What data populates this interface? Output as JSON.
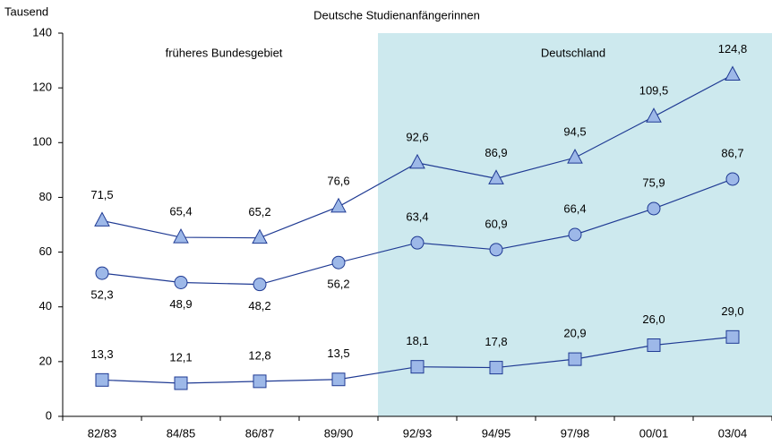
{
  "chart_data": {
    "type": "line",
    "title": "Deutsche Studienanfängerinnen",
    "y_label": "Tausend",
    "annotations": [
      "früheres Bundesgebiet",
      "Deutschland"
    ],
    "categories": [
      "82/83",
      "84/85",
      "86/87",
      "89/90",
      "92/93",
      "94/95",
      "97/98",
      "00/01",
      "03/04"
    ],
    "ylim": [
      0,
      140
    ],
    "yticks": [
      0,
      20,
      40,
      60,
      80,
      100,
      120,
      140
    ],
    "grid": false,
    "series": [
      {
        "marker": "triangle",
        "color": "#1f3a93",
        "marker_color": "#9db8e8",
        "values": [
          71.5,
          65.4,
          65.2,
          76.6,
          92.6,
          86.9,
          94.5,
          109.5,
          124.8
        ],
        "value_labels": [
          "71,5",
          "65,4",
          "65,2",
          "76,6",
          "92,6",
          "86,9",
          "94,5",
          "109,5",
          "124,8"
        ]
      },
      {
        "marker": "circle",
        "color": "#1f3a93",
        "marker_color": "#9db8e8",
        "values": [
          52.3,
          48.9,
          48.2,
          56.2,
          63.4,
          60.9,
          66.4,
          75.9,
          86.7
        ],
        "value_labels": [
          "52,3",
          "48,9",
          "48,2",
          "56,2",
          "63,4",
          "60,9",
          "66,4",
          "75,9",
          "86,7"
        ]
      },
      {
        "marker": "square",
        "color": "#1f3a93",
        "marker_color": "#9db8e8",
        "values": [
          13.3,
          12.1,
          12.8,
          13.5,
          18.1,
          17.8,
          20.9,
          26.0,
          29.0
        ],
        "value_labels": [
          "13,3",
          "12,1",
          "12,8",
          "13,5",
          "18,1",
          "17,8",
          "20,9",
          "26,0",
          "29,0"
        ]
      }
    ]
  }
}
